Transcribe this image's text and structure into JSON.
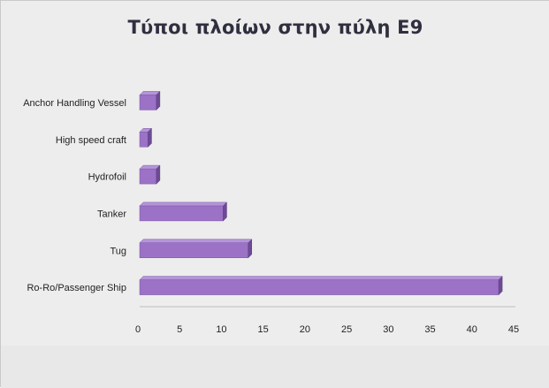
{
  "chart_data": {
    "type": "bar",
    "orientation": "horizontal",
    "title": "Τύποι πλοίων στην πύλη Ε9",
    "categories": [
      "Ro-Ro/Passenger Ship",
      "Tug",
      "Tanker",
      "Hydrofoil",
      "High speed craft",
      "Anchor Handling Vessel"
    ],
    "values": [
      43,
      13,
      10,
      2,
      1,
      2
    ],
    "xlabel": "",
    "ylabel": "",
    "xlim": [
      0,
      45
    ],
    "xticks": [
      0,
      5,
      10,
      15,
      20,
      25,
      30,
      35,
      40,
      45
    ],
    "grid": false,
    "legend": "none",
    "bar_color": "#9b72c6",
    "bar_top_color": "#b594d8",
    "bar_side_color": "#6e4a95"
  }
}
